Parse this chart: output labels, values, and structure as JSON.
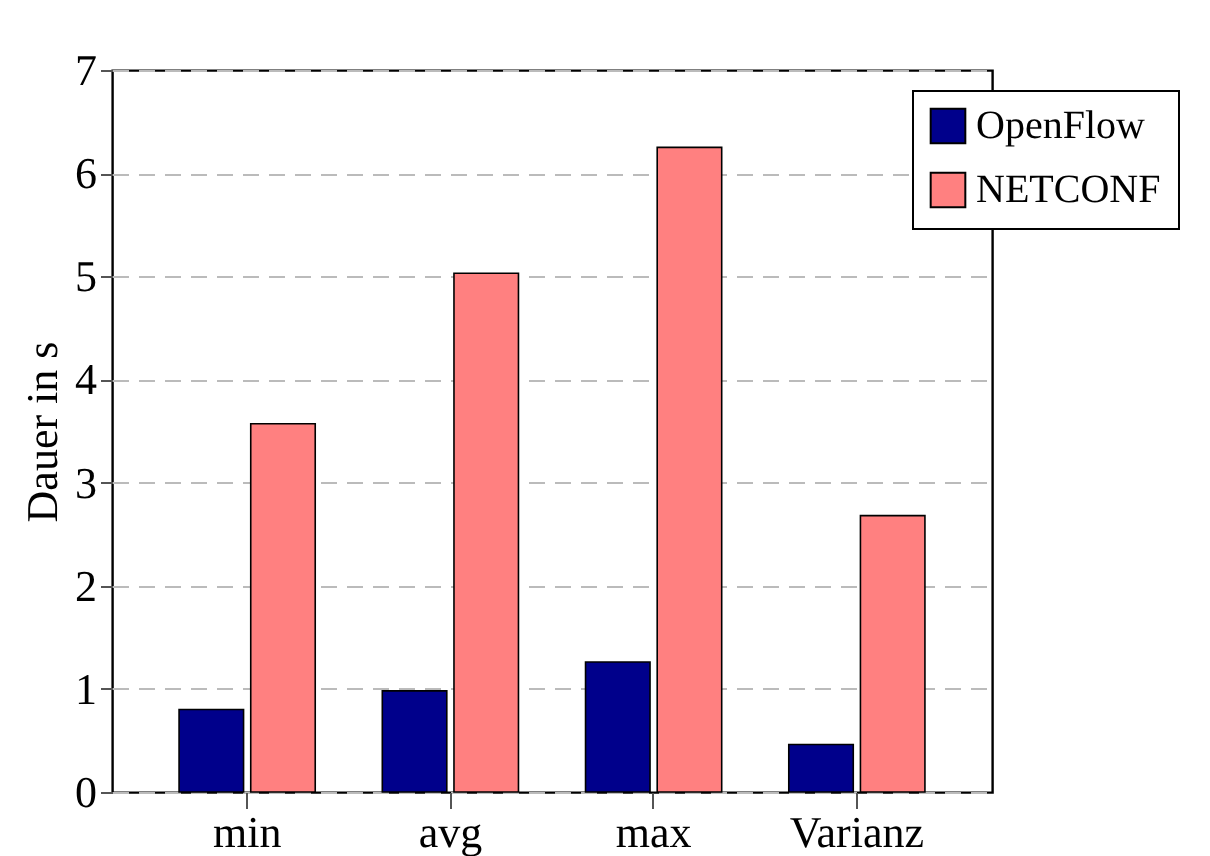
{
  "chart_data": {
    "type": "bar",
    "ylabel": "Dauer in s",
    "categories": [
      "min",
      "avg",
      "max",
      "Varianz"
    ],
    "series": [
      {
        "name": "OpenFlow",
        "color": "#00008b",
        "values": [
          0.8,
          0.98,
          1.26,
          0.46
        ]
      },
      {
        "name": "NETCONF",
        "color": "#ff8080",
        "values": [
          3.57,
          5.03,
          6.25,
          2.68
        ]
      }
    ],
    "ylim": [
      0,
      7
    ],
    "yticks": [
      0,
      1,
      2,
      3,
      4,
      5,
      6,
      7
    ],
    "grid": "y",
    "legend": "top right"
  }
}
